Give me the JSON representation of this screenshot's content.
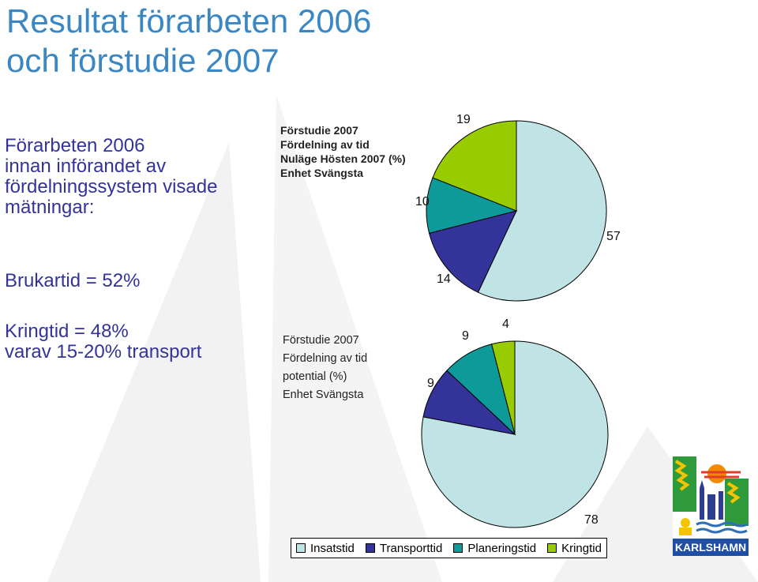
{
  "title": {
    "line1": "Resultat förarbeten 2006",
    "line2": "och förstudie 2007"
  },
  "left_panel": {
    "intro_lines": [
      "Förarbeten 2006",
      "innan införandet av",
      "fördelningssystem visade",
      "mätningar:"
    ],
    "brukartid": "Brukartid = 52%",
    "kringtid_lines": [
      "Kringtid = 48%",
      "varav 15-20% transport"
    ]
  },
  "legend": [
    "Insatstid",
    "Transporttid",
    "Planeringstid",
    "Kringtid"
  ],
  "colors": {
    "title": "#3a87c3",
    "body_text": "#333399",
    "Insatstid": "#c0e4e6",
    "Transporttid": "#333399",
    "Planeringstid": "#0f9a9a",
    "Kringtid": "#99cc00"
  },
  "logo": {
    "text": "KARLSHAMN"
  },
  "chart_data": [
    {
      "type": "pie",
      "title_lines": [
        "Förstudie 2007",
        "Fördelning av tid",
        "Nuläge Hösten 2007 (%)",
        "Enhet Svängsta"
      ],
      "categories": [
        "Insatstid",
        "Transporttid",
        "Planeringstid",
        "Kringtid"
      ],
      "values": [
        57,
        14,
        10,
        19
      ],
      "labels": [
        "57",
        "14",
        "10",
        "19"
      ]
    },
    {
      "type": "pie",
      "title_lines": [
        "Förstudie 2007",
        "Fördelning av tid",
        "potential (%)",
        "Enhet Svängsta"
      ],
      "categories": [
        "Insatstid",
        "Transporttid",
        "Planeringstid",
        "Kringtid"
      ],
      "values": [
        78,
        9,
        9,
        4
      ],
      "labels": [
        "78",
        "9",
        "9",
        "4"
      ]
    }
  ]
}
